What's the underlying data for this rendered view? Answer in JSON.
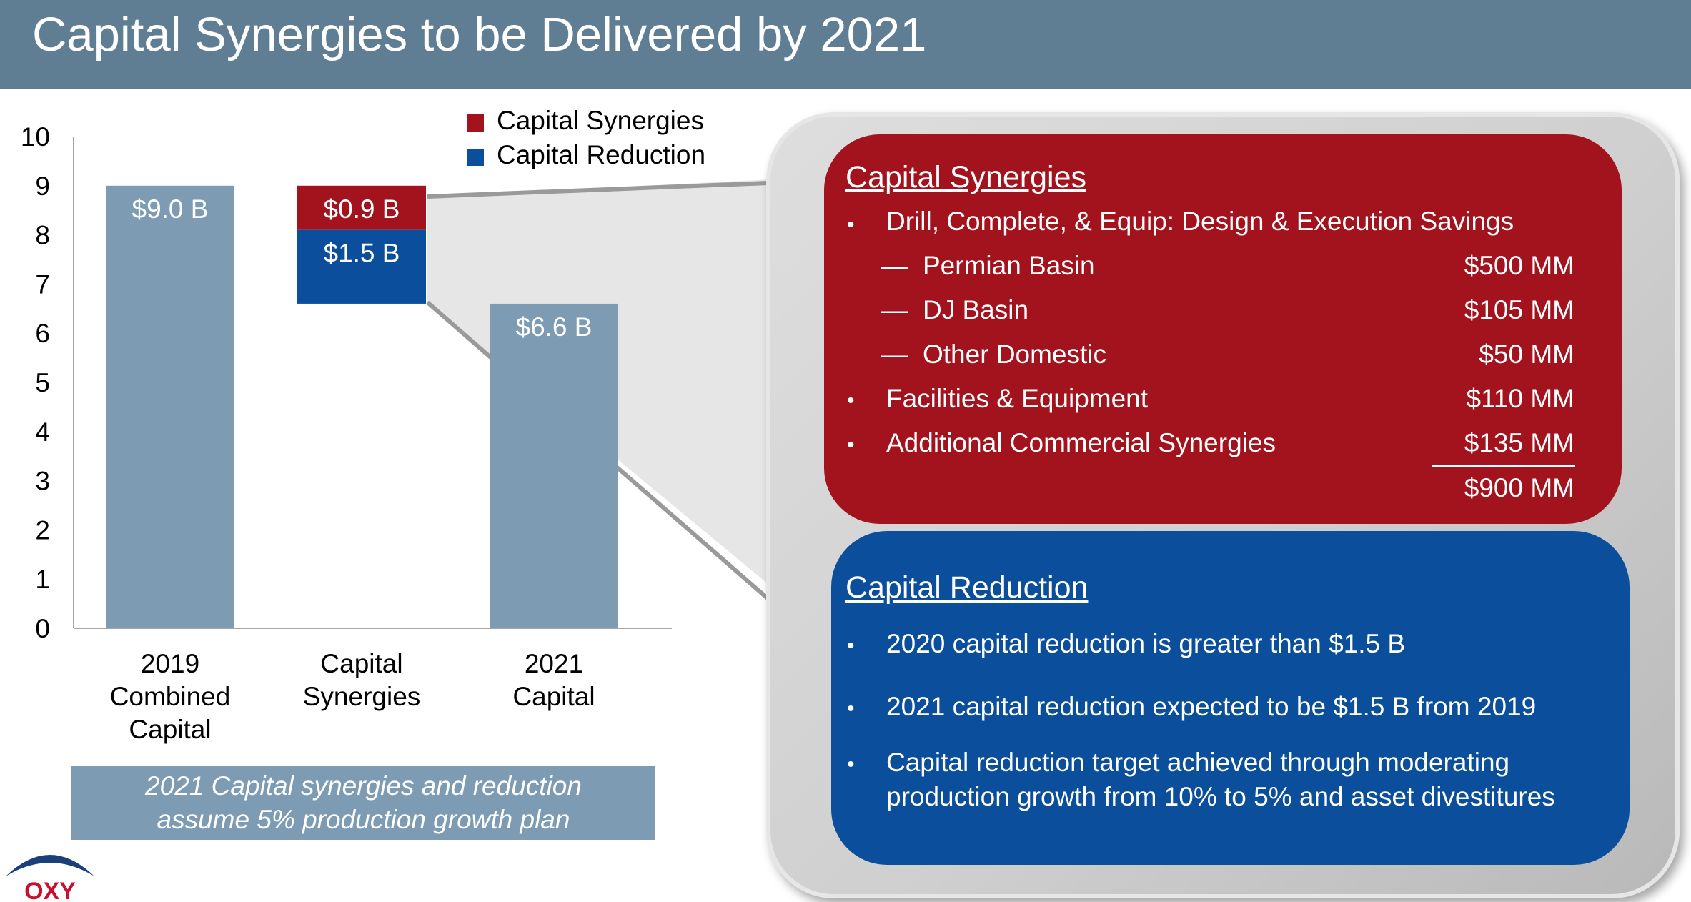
{
  "header": {
    "title": "Capital Synergies to be Delivered by 2021"
  },
  "chart_data": {
    "type": "bar",
    "categories": [
      "2019 Combined Capital",
      "Capital Synergies",
      "2021 Capital"
    ],
    "category_lines": [
      [
        "2019",
        "Combined",
        "Capital"
      ],
      [
        "Capital",
        "Synergies"
      ],
      [
        "2021",
        "Capital"
      ]
    ],
    "ylim": [
      0,
      10
    ],
    "yticks": [
      "0",
      "1",
      "2",
      "3",
      "4",
      "5",
      "6",
      "7",
      "8",
      "9",
      "10"
    ],
    "bars": [
      {
        "category": "2019 Combined Capital",
        "base": 0,
        "value": 9.0,
        "label": "$9.0 B",
        "color": "#7d9cb3"
      },
      {
        "category": "Capital Synergies",
        "base": 8.1,
        "value": 0.9,
        "label": "$0.9 B",
        "color": "#a3131d",
        "series": "Capital Synergies"
      },
      {
        "category": "Capital Synergies",
        "base": 6.6,
        "value": 1.5,
        "label": "$1.5 B",
        "color": "#0b4f9c",
        "series": "Capital Reduction"
      },
      {
        "category": "2021 Capital",
        "base": 0,
        "value": 6.6,
        "label": "$6.6 B",
        "color": "#7d9cb3"
      }
    ],
    "legend": [
      {
        "name": "Capital Synergies",
        "color": "#a3131d"
      },
      {
        "name": "Capital Reduction",
        "color": "#0b4f9c"
      }
    ],
    "legend_position": "top-right"
  },
  "note": {
    "line1": "2021 Capital synergies and reduction",
    "line2": "assume 5% production growth plan"
  },
  "synergies_box": {
    "title": "Capital Synergies",
    "bullet_char": "•",
    "dash_char": "—",
    "items": [
      {
        "type": "bullet",
        "label": "Drill, Complete, & Equip: Design & Execution Savings",
        "amount": ""
      },
      {
        "type": "dash",
        "label": "Permian Basin",
        "amount": "$500 MM"
      },
      {
        "type": "dash",
        "label": "DJ Basin",
        "amount": "$105 MM"
      },
      {
        "type": "dash",
        "label": "Other Domestic",
        "amount": "$50 MM"
      },
      {
        "type": "bullet",
        "label": "Facilities & Equipment",
        "amount": "$110 MM"
      },
      {
        "type": "bullet",
        "label": "Additional Commercial Synergies",
        "amount": "$135 MM"
      }
    ],
    "total": "$900 MM"
  },
  "reduction_box": {
    "title": "Capital Reduction",
    "items": [
      "2020 capital reduction is greater than $1.5 B",
      "2021 capital reduction expected to be $1.5 B from 2019",
      "Capital reduction target achieved through moderating production growth from 10% to 5% and asset divestitures"
    ],
    "item3_line1": "Capital reduction target achieved through moderating",
    "item3_line2": "production growth from 10% to 5% and asset divestitures"
  },
  "logo": {
    "text": "OXY",
    "color": "#c8102e",
    "arc_color": "#1b3f7a"
  }
}
